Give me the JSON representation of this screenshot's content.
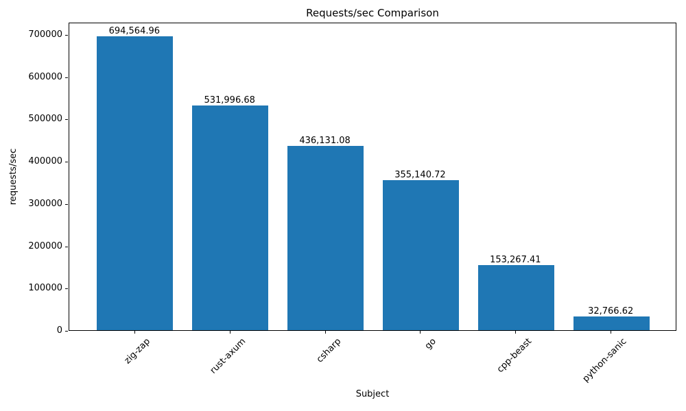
{
  "chart_data": {
    "type": "bar",
    "title": "Requests/sec Comparison",
    "xlabel": "Subject",
    "ylabel": "requests/sec",
    "categories": [
      "zig-zap",
      "rust-axum",
      "csharp",
      "go",
      "cpp-beast",
      "python-sanic"
    ],
    "values": [
      694564.96,
      531996.68,
      436131.08,
      355140.72,
      153267.41,
      32766.62
    ],
    "value_labels": [
      "694,564.96",
      "531,996.68",
      "436,131.08",
      "355,140.72",
      "153,267.41",
      "32,766.62"
    ],
    "y_ticks": [
      0,
      100000,
      200000,
      300000,
      400000,
      500000,
      600000,
      700000
    ],
    "y_tick_labels": [
      "0",
      "100000",
      "200000",
      "300000",
      "400000",
      "500000",
      "600000",
      "700000"
    ],
    "ylim": [
      0,
      729293
    ],
    "bar_color": "#1f77b4",
    "text_color": "#000000",
    "background_color": "#ffffff",
    "grid": false,
    "legend": null
  }
}
